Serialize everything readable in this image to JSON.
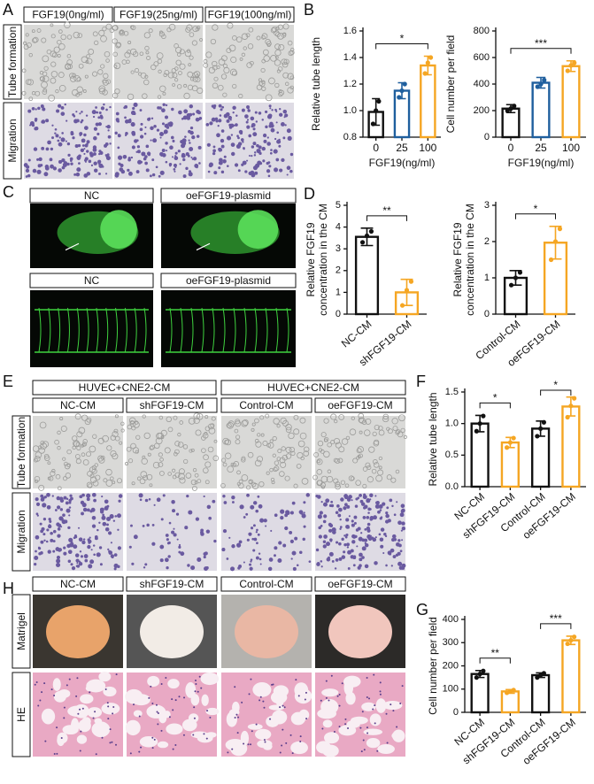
{
  "panels": {
    "letters": [
      "A",
      "B",
      "C",
      "D",
      "E",
      "F",
      "G",
      "H"
    ]
  },
  "panel_a": {
    "columns": [
      "FGF19(0ng/ml)",
      "FGF19(25ng/ml)",
      "FGF19(100ng/ml)"
    ],
    "rows": [
      "Tube formation",
      "Migration"
    ]
  },
  "panel_c": {
    "labels": [
      "NC",
      "oeFGF19-plasmid",
      "NC",
      "oeFGF19-plasmid"
    ]
  },
  "panel_e": {
    "groups": [
      "HUVEC+CNE2-CM",
      "HUVEC+CNE2-CM"
    ],
    "columns": [
      "NC-CM",
      "shFGF19-CM",
      "Control-CM",
      "oeFGF19-CM"
    ],
    "rows": [
      "Tube formation",
      "Migration"
    ]
  },
  "panel_h": {
    "columns": [
      "NC-CM",
      "shFGF19-CM",
      "Control-CM",
      "oeFGF19-CM"
    ],
    "rows": [
      "Matrigel",
      "HE"
    ]
  },
  "chart_data": [
    {
      "type": "bar",
      "ylabel": "Relative tube length",
      "xlabel": "FGF19(ng/ml)",
      "categories": [
        "0",
        "25",
        "100"
      ],
      "colors": [
        "#111111",
        "#1f5f9e",
        "#f5a623"
      ],
      "values": [
        0.99,
        1.15,
        1.34
      ],
      "errors": [
        0.1,
        0.06,
        0.07
      ],
      "points": [
        [
          0.9,
          1.0,
          1.07
        ],
        [
          1.1,
          1.15,
          1.2
        ],
        [
          1.28,
          1.36,
          1.4
        ]
      ],
      "ylim": [
        0.8,
        1.6
      ],
      "yticks": [
        0.8,
        {
          "value": 1,
          "label": "1.0"
        },
        1.2,
        1.4,
        1.6
      ],
      "annotations": [
        {
          "text": "*",
          "between": [
            "0",
            "100"
          ]
        }
      ]
    },
    {
      "type": "bar",
      "ylabel": "Cell number per field",
      "xlabel": "FGF19(ng/ml)",
      "categories": [
        "0",
        "25",
        "100"
      ],
      "colors": [
        "#111111",
        "#1f5f9e",
        "#f5a623"
      ],
      "values": [
        215,
        410,
        535
      ],
      "errors": [
        30,
        40,
        40
      ],
      "points": [
        [
          200,
          215,
          235
        ],
        [
          380,
          400,
          430
        ],
        [
          500,
          540,
          560
        ]
      ],
      "ylim": [
        0,
        800
      ],
      "yticks": [
        0,
        200,
        400,
        600,
        800
      ],
      "annotations": [
        {
          "text": "***",
          "between": [
            "0",
            "100"
          ]
        }
      ]
    },
    {
      "type": "bar",
      "ylabel": [
        "Relative FGF19",
        "concentration in the CM"
      ],
      "categories": [
        "NC-CM",
        "shFGF19-CM"
      ],
      "colors": [
        "#111111",
        "#f5a623"
      ],
      "values": [
        3.55,
        1.0
      ],
      "errors": [
        0.4,
        0.6
      ],
      "points": [
        [
          3.3,
          3.6,
          3.8
        ],
        [
          0.4,
          1.1,
          1.5
        ]
      ],
      "ylim": [
        0,
        5
      ],
      "yticks": [
        0,
        1,
        2,
        3,
        4,
        5
      ],
      "annotations": [
        {
          "text": "**",
          "between": [
            "NC-CM",
            "shFGF19-CM"
          ]
        }
      ]
    },
    {
      "type": "bar",
      "ylabel": [
        "Relative FGF19",
        "concentration in the CM"
      ],
      "categories": [
        "Control-CM",
        "oeFGF19-CM"
      ],
      "colors": [
        "#111111",
        "#f5a623"
      ],
      "values": [
        1.0,
        1.97
      ],
      "errors": [
        0.2,
        0.45
      ],
      "points": [
        [
          0.8,
          1.0,
          1.15
        ],
        [
          1.5,
          2.0,
          2.35
        ]
      ],
      "ylim": [
        0,
        3
      ],
      "yticks": [
        0,
        1,
        2,
        3
      ],
      "annotations": [
        {
          "text": "*",
          "between": [
            "Control-CM",
            "oeFGF19-CM"
          ]
        }
      ]
    },
    {
      "type": "bar",
      "ylabel": "Relative tube length",
      "categories": [
        "NC-CM",
        "shFGF19-CM",
        "Control-CM",
        "oeFGF19-CM"
      ],
      "colors": [
        "#111111",
        "#f5a623",
        "#111111",
        "#f5a623"
      ],
      "values": [
        1.0,
        0.7,
        0.92,
        1.27
      ],
      "errors": [
        0.13,
        0.08,
        0.12,
        0.15
      ],
      "points": [
        [
          0.88,
          1.0,
          1.12
        ],
        [
          0.62,
          0.7,
          0.77
        ],
        [
          0.8,
          0.92,
          1.02
        ],
        [
          1.1,
          1.28,
          1.4
        ]
      ],
      "ylim": [
        0,
        1.5
      ],
      "yticks": [
        {
          "value": 0,
          "label": "0.0"
        },
        0.5,
        {
          "value": 1,
          "label": "1.0"
        },
        1.5
      ],
      "annotations": [
        {
          "text": "*",
          "between": [
            "NC-CM",
            "shFGF19-CM"
          ]
        },
        {
          "text": "*",
          "between": [
            "Control-CM",
            "oeFGF19-CM"
          ]
        }
      ]
    },
    {
      "type": "bar",
      "ylabel": "Cell number per field",
      "categories": [
        "NC-CM",
        "shFGF19-CM",
        "Control-CM",
        "oeFGF19-CM"
      ],
      "colors": [
        "#111111",
        "#f5a623",
        "#111111",
        "#f5a623"
      ],
      "values": [
        165,
        90,
        160,
        310
      ],
      "errors": [
        15,
        8,
        10,
        18
      ],
      "points": [
        [
          150,
          165,
          178
        ],
        [
          84,
          90,
          96
        ],
        [
          150,
          160,
          168
        ],
        [
          295,
          310,
          325
        ]
      ],
      "ylim": [
        0,
        400
      ],
      "yticks": [
        0,
        100,
        200,
        300,
        400
      ],
      "annotations": [
        {
          "text": "**",
          "between": [
            "NC-CM",
            "shFGF19-CM"
          ]
        },
        {
          "text": "***",
          "between": [
            "Control-CM",
            "oeFGF19-CM"
          ]
        }
      ]
    }
  ]
}
